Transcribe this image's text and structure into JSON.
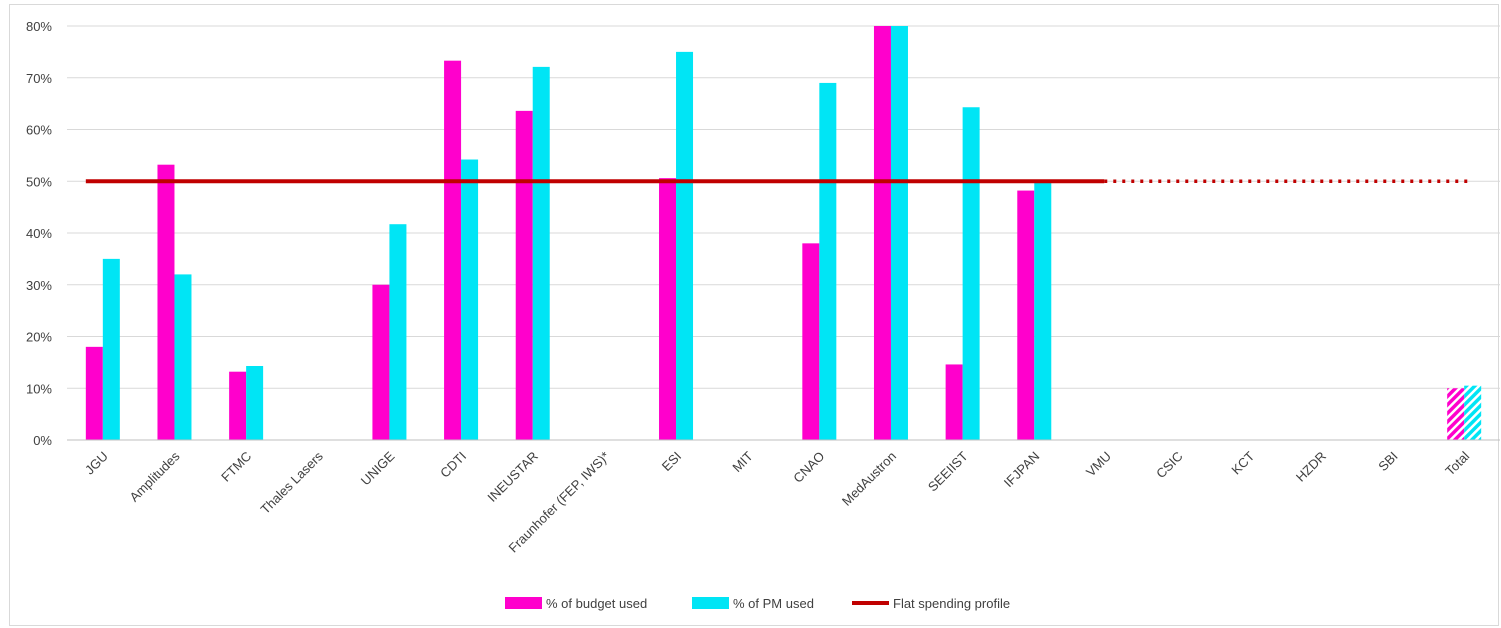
{
  "chart_data": {
    "type": "bar",
    "categories": [
      "JGU",
      "Amplitudes",
      "FTMC",
      "Thales Lasers",
      "UNIGE",
      "CDTI",
      "INEUSTAR",
      "Fraunhofer (FEP, IWS)*",
      "ESI",
      "MIT",
      "CNAO",
      "MedAustron",
      "SEEIIST",
      "IFJPAN",
      "VMU",
      "CSIC",
      "KCT",
      "HZDR",
      "SBI",
      "Total"
    ],
    "series": [
      {
        "name": "% of budget used",
        "color": "#ff00cc",
        "values": [
          18,
          53.2,
          13.2,
          0,
          30,
          73.3,
          63.6,
          0,
          50.6,
          0,
          38,
          80,
          14.6,
          48.2,
          0,
          0,
          0,
          0,
          0,
          10
        ]
      },
      {
        "name": "% of PM used",
        "color": "#00e5f5",
        "values": [
          35,
          32,
          14.3,
          0,
          41.7,
          54.2,
          72.1,
          0,
          75,
          0,
          69,
          80,
          64.3,
          50,
          0,
          0,
          0,
          0,
          0,
          10.5
        ]
      }
    ],
    "hatched_category": "Total",
    "reference_line": {
      "name": "Flat spending profile",
      "value": 50,
      "color": "#c00000",
      "solid_from": "JGU",
      "solid_to": "IFJPAN",
      "dotted_to": "Total"
    },
    "ylim": [
      0,
      80
    ],
    "yticks": [
      "0%",
      "10%",
      "20%",
      "30%",
      "40%",
      "50%",
      "60%",
      "70%",
      "80%"
    ],
    "grid": true,
    "legend_position": "bottom",
    "title": "",
    "xlabel": "",
    "ylabel": ""
  }
}
